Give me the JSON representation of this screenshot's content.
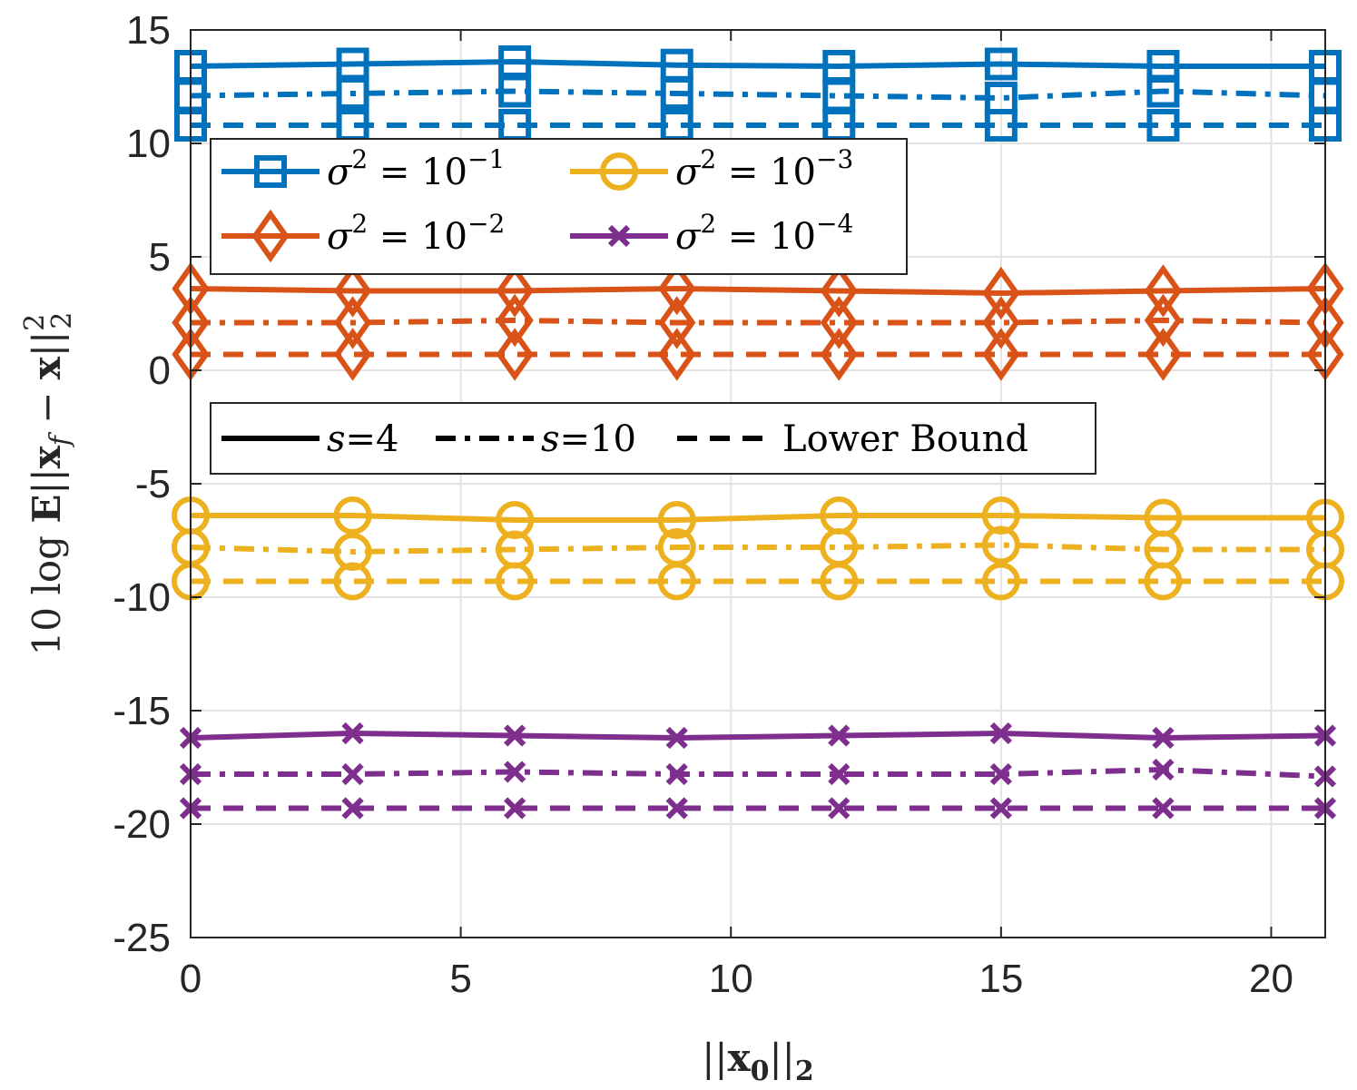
{
  "chart_data": {
    "type": "line",
    "title": "",
    "xlabel": "||x_0||_2",
    "ylabel": "10 log E||x_f − x||_2^2",
    "xlim": [
      0,
      21
    ],
    "ylim": [
      -25,
      15
    ],
    "xticks": [
      0,
      5,
      10,
      15,
      20
    ],
    "yticks": [
      15,
      10,
      5,
      0,
      -5,
      -10,
      -15,
      -20,
      -25
    ],
    "grid": true,
    "x": [
      0,
      3,
      6,
      9,
      12,
      15,
      18,
      21
    ],
    "series": [
      {
        "name": "σ² = 10⁻¹, s=4",
        "group": "sigma1",
        "style": "solid",
        "values": [
          13.4,
          13.5,
          13.6,
          13.45,
          13.4,
          13.5,
          13.4,
          13.4
        ]
      },
      {
        "name": "σ² = 10⁻¹, s=10",
        "group": "sigma1",
        "style": "dashdot",
        "values": [
          12.1,
          12.2,
          12.3,
          12.2,
          12.1,
          12.0,
          12.3,
          12.1
        ]
      },
      {
        "name": "σ² = 10⁻¹, Lower Bound",
        "group": "sigma1",
        "style": "dashed",
        "values": [
          10.8,
          10.8,
          10.8,
          10.8,
          10.8,
          10.8,
          10.8,
          10.8
        ]
      },
      {
        "name": "σ² = 10⁻², s=4",
        "group": "sigma2",
        "style": "solid",
        "values": [
          3.6,
          3.5,
          3.5,
          3.6,
          3.5,
          3.4,
          3.5,
          3.6
        ]
      },
      {
        "name": "σ² = 10⁻², s=10",
        "group": "sigma2",
        "style": "dashdot",
        "values": [
          2.1,
          2.1,
          2.2,
          2.1,
          2.1,
          2.1,
          2.2,
          2.1
        ]
      },
      {
        "name": "σ² = 10⁻², Lower Bound",
        "group": "sigma2",
        "style": "dashed",
        "values": [
          0.7,
          0.7,
          0.7,
          0.7,
          0.7,
          0.7,
          0.7,
          0.7
        ]
      },
      {
        "name": "σ² = 10⁻³, s=4",
        "group": "sigma3",
        "style": "solid",
        "values": [
          -6.4,
          -6.4,
          -6.6,
          -6.6,
          -6.4,
          -6.4,
          -6.5,
          -6.5
        ]
      },
      {
        "name": "σ² = 10⁻³, s=10",
        "group": "sigma3",
        "style": "dashdot",
        "values": [
          -7.8,
          -8.0,
          -7.9,
          -7.8,
          -7.8,
          -7.7,
          -7.9,
          -7.9
        ]
      },
      {
        "name": "σ² = 10⁻³, Lower Bound",
        "group": "sigma3",
        "style": "dashed",
        "values": [
          -9.3,
          -9.3,
          -9.3,
          -9.3,
          -9.3,
          -9.3,
          -9.3,
          -9.3
        ]
      },
      {
        "name": "σ² = 10⁻⁴, s=4",
        "group": "sigma4",
        "style": "solid",
        "values": [
          -16.2,
          -16.0,
          -16.1,
          -16.2,
          -16.1,
          -16.0,
          -16.2,
          -16.1
        ]
      },
      {
        "name": "σ² = 10⁻⁴, s=10",
        "group": "sigma4",
        "style": "dashdot",
        "values": [
          -17.8,
          -17.8,
          -17.7,
          -17.8,
          -17.8,
          -17.8,
          -17.6,
          -17.9
        ]
      },
      {
        "name": "σ² = 10⁻⁴, Lower Bound",
        "group": "sigma4",
        "style": "dashed",
        "values": [
          -19.3,
          -19.3,
          -19.3,
          -19.3,
          -19.3,
          -19.3,
          -19.3,
          -19.3
        ]
      }
    ],
    "groups": {
      "sigma1": {
        "color": "#0072BD",
        "marker": "square"
      },
      "sigma2": {
        "color": "#D95319",
        "marker": "diamond"
      },
      "sigma3": {
        "color": "#EDB120",
        "marker": "circle"
      },
      "sigma4": {
        "color": "#7E2F8E",
        "marker": "x"
      }
    },
    "legend_sigma": {
      "placement": "top-left",
      "entries": [
        {
          "group": "sigma1",
          "base": "σ",
          "sup1": "2",
          "eq": " = 10",
          "sup2": "−1"
        },
        {
          "group": "sigma3",
          "base": "σ",
          "sup1": "2",
          "eq": " = 10",
          "sup2": "−3"
        },
        {
          "group": "sigma2",
          "base": "σ",
          "sup1": "2",
          "eq": " = 10",
          "sup2": "−2"
        },
        {
          "group": "sigma4",
          "base": "σ",
          "sup1": "2",
          "eq": " = 10",
          "sup2": "−4"
        }
      ]
    },
    "legend_style": {
      "placement": "center-left",
      "entries": [
        {
          "style": "solid",
          "label": "=4",
          "var": "s"
        },
        {
          "style": "dashdot",
          "label": "=10",
          "var": "s"
        },
        {
          "style": "dashed",
          "label": "Lower Bound",
          "var": ""
        }
      ]
    }
  }
}
